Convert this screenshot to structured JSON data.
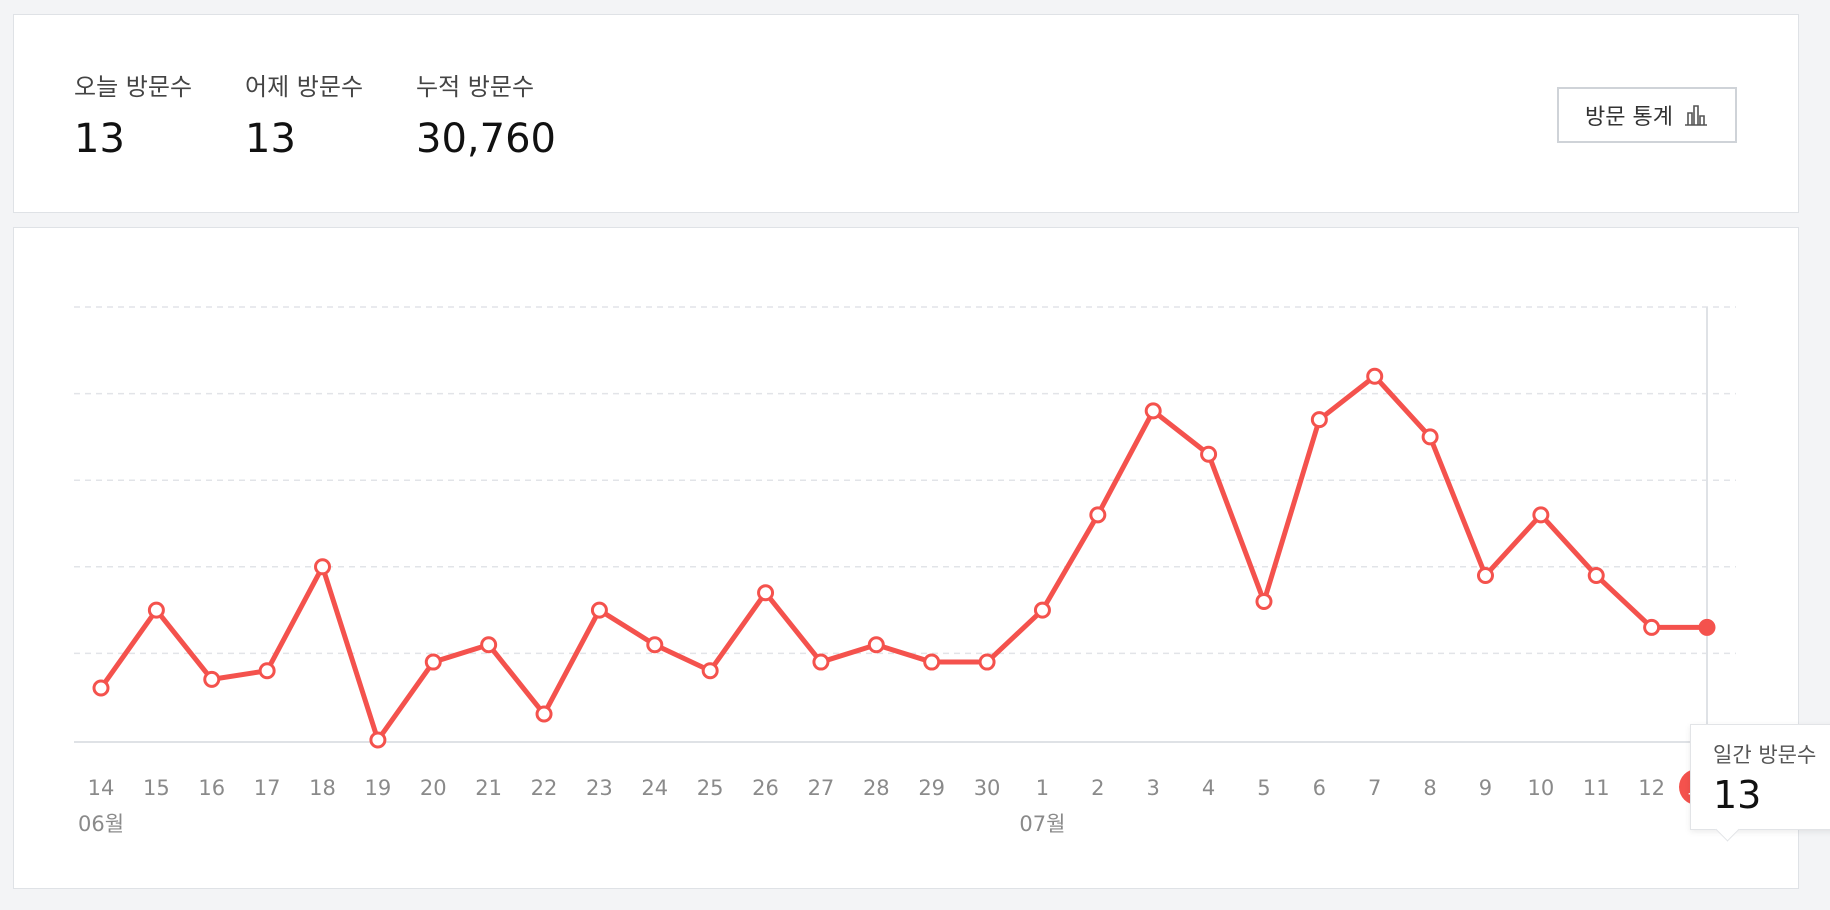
{
  "stats": {
    "today_label": "오늘 방문수",
    "today_value": "13",
    "yesterday_label": "어제 방문수",
    "yesterday_value": "13",
    "total_label": "누적 방문수",
    "total_value": "30,760",
    "button_label": "방문 통계",
    "button_icon": "bar-chart-icon"
  },
  "tooltip": {
    "label": "일간 방문수",
    "value": "13"
  },
  "colors": {
    "line": "#f4524d",
    "grid": "#e2e4e8",
    "axis": "#dfe2e6",
    "today_badge": "#f4524d"
  },
  "chart_data": {
    "type": "line",
    "grid": true,
    "categories": [
      "14",
      "15",
      "16",
      "17",
      "18",
      "19",
      "20",
      "21",
      "22",
      "23",
      "24",
      "25",
      "26",
      "27",
      "28",
      "29",
      "30",
      "1",
      "2",
      "3",
      "4",
      "5",
      "6",
      "7",
      "8",
      "9",
      "10",
      "11",
      "12",
      "오늘"
    ],
    "month_labels": [
      {
        "label": "06월",
        "at": "14"
      },
      {
        "label": "07월",
        "at": "1"
      }
    ],
    "series": [
      {
        "values": [
          6,
          15,
          7,
          8,
          20,
          0,
          9,
          11,
          3,
          15,
          11,
          8,
          17,
          9,
          11,
          9,
          9,
          15,
          26,
          38,
          33,
          16,
          37,
          42,
          35,
          19,
          26,
          19,
          13,
          13
        ]
      }
    ],
    "ylim": [
      0,
      50
    ],
    "highlight_index": 29
  }
}
